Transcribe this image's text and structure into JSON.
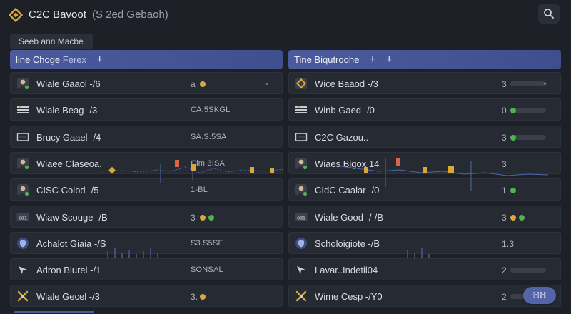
{
  "header": {
    "title": "C2C Bavoot",
    "subtitle": "(S 2ed Gebaoh)",
    "search_icon": "search-icon"
  },
  "filter_pill": {
    "label": "Seeb ann Macbe"
  },
  "columns": [
    {
      "title": "line Choge",
      "title_muted": "Ferex",
      "plus_label": "+",
      "rows": [
        {
          "icon": "avatar-icon",
          "name": "Wiale Gaaol -/6",
          "value": "a",
          "value_kind": "num",
          "dots": [
            "#d8a83a"
          ],
          "chevron": "⌄"
        },
        {
          "icon": "sliders-icon",
          "name": "Wiale Beag -/3",
          "value": "CA.5SKGL",
          "value_kind": "text",
          "dots": []
        },
        {
          "icon": "window-icon",
          "name": "Brucy Gaael -/4",
          "value": "SA.S.5SA",
          "value_kind": "text",
          "dots": []
        },
        {
          "icon": "avatar-icon",
          "name": "Wiaee Claseoa.",
          "value": "Clm 3ISA",
          "value_kind": "text",
          "dots": []
        },
        {
          "icon": "avatar-icon",
          "name": "CISC Colbd -/5",
          "value": "1-BL",
          "value_kind": "text",
          "dots": []
        },
        {
          "icon": "card-icon",
          "name": "Wiaw Scouge -/B",
          "value": "3",
          "value_kind": "num",
          "dots": [
            "#d8a83a",
            "#4fb34f"
          ]
        },
        {
          "icon": "shield-icon",
          "name": "Achalot Giaia -/S",
          "value": "S3.S5SF",
          "value_kind": "text",
          "dots": []
        },
        {
          "icon": "arrow-icon",
          "name": "Adron Biurel -/1",
          "value": "SONSAL",
          "value_kind": "text",
          "dots": []
        },
        {
          "icon": "tool-icon",
          "name": "Wiale Gecel -/3",
          "value": "3.",
          "value_kind": "num",
          "dots": [
            "#d8a83a"
          ]
        }
      ]
    },
    {
      "title": "Tine Biqutroohe",
      "title_muted": "",
      "plus_label": "+",
      "rows": [
        {
          "icon": "diamond-icon",
          "name": "Wice Baaod -/3",
          "value": "3",
          "value_kind": "num",
          "dots": [],
          "bar": 0.0,
          "chevron": "⌄"
        },
        {
          "icon": "sliders-icon",
          "name": "Winb Gaed -/0",
          "value": "0",
          "value_kind": "num",
          "dots": [
            "#4fb34f"
          ],
          "bar": 0.0
        },
        {
          "icon": "window-icon",
          "name": "C2C Gazou..",
          "value": "3",
          "value_kind": "num",
          "dots": [
            "#4fb34f"
          ],
          "bar": 0.0
        },
        {
          "icon": "avatar-icon",
          "name": "Wiaes Bigox 14",
          "value": "3",
          "value_kind": "num",
          "dots": []
        },
        {
          "icon": "avatar-icon",
          "name": "CIdC Caalar -/0",
          "value": "1",
          "value_kind": "num",
          "dots": [
            "#4fb34f"
          ]
        },
        {
          "icon": "card-icon",
          "name": "Wiale Good -/-/B",
          "value": "3",
          "value_kind": "num",
          "dots": [
            "#d8a83a",
            "#4fb34f"
          ]
        },
        {
          "icon": "shield-icon",
          "name": "Scholoigiote -/B",
          "value": "1.3",
          "value_kind": "num",
          "dots": []
        },
        {
          "icon": "arrow-icon",
          "name": "Lavar..Indetil04",
          "value": "2",
          "value_kind": "num",
          "dots": [],
          "bar": 0.0
        },
        {
          "icon": "tool-icon",
          "name": "Wime Cesp -/Y0",
          "value": "2",
          "value_kind": "num",
          "dots": [],
          "bar": 0.0
        }
      ]
    }
  ],
  "fab": {
    "label": "ℍℍ"
  },
  "colors": {
    "accent": "#4a5a9c",
    "green": "#4fb34f",
    "amber": "#d8a83a",
    "red": "#d9654a"
  }
}
